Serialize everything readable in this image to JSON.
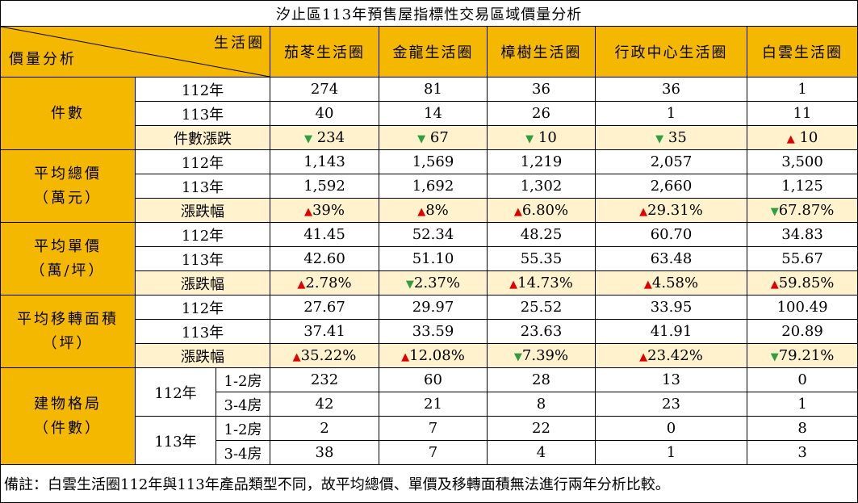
{
  "title": "汐止區113年預售屋指標性交易區域價量分析",
  "header": {
    "corner_top": "生活圈",
    "corner_bottom": "價量分析",
    "areas": [
      "茄苳生活圈",
      "金龍生活圈",
      "樟樹生活圈",
      "行政中心生活圈",
      "白雲生活圈"
    ]
  },
  "sections": {
    "count": {
      "label_lines": [
        "件數"
      ],
      "rows": [
        {
          "label": "112年",
          "values": [
            "274",
            "81",
            "36",
            "36",
            "1"
          ]
        },
        {
          "label": "113年",
          "values": [
            "40",
            "14",
            "26",
            "1",
            "11"
          ]
        },
        {
          "label": "件數漲跌",
          "changes": [
            {
              "dir": "down",
              "value": "234"
            },
            {
              "dir": "down",
              "value": "67"
            },
            {
              "dir": "down",
              "value": "10"
            },
            {
              "dir": "down",
              "value": "35"
            },
            {
              "dir": "up",
              "value": "10"
            }
          ]
        }
      ]
    },
    "avg_total": {
      "label_lines": [
        "平均總價",
        "（萬元）"
      ],
      "rows": [
        {
          "label": "112年",
          "values": [
            "1,143",
            "1,569",
            "1,219",
            "2,057",
            "3,500"
          ]
        },
        {
          "label": "113年",
          "values": [
            "1,592",
            "1,692",
            "1,302",
            "2,660",
            "1,125"
          ]
        },
        {
          "label": "漲跌幅",
          "changes": [
            {
              "dir": "up",
              "value": "39%"
            },
            {
              "dir": "up",
              "value": "8%"
            },
            {
              "dir": "up",
              "value": "6.80%"
            },
            {
              "dir": "up",
              "value": "29.31%"
            },
            {
              "dir": "down",
              "value": "67.87%"
            }
          ]
        }
      ]
    },
    "avg_unit": {
      "label_lines": [
        "平均單價",
        "（萬/坪）"
      ],
      "rows": [
        {
          "label": "112年",
          "values": [
            "41.45",
            "52.34",
            "48.25",
            "60.70",
            "34.83"
          ]
        },
        {
          "label": "113年",
          "values": [
            "42.60",
            "51.10",
            "55.35",
            "63.48",
            "55.67"
          ]
        },
        {
          "label": "漲跌幅",
          "changes": [
            {
              "dir": "up",
              "value": "2.78%"
            },
            {
              "dir": "down",
              "value": "2.37%"
            },
            {
              "dir": "up",
              "value": "14.73%"
            },
            {
              "dir": "up",
              "value": "4.58%"
            },
            {
              "dir": "up",
              "value": "59.85%"
            }
          ]
        }
      ]
    },
    "avg_area": {
      "label_lines": [
        "平均移轉面積",
        "（坪）"
      ],
      "rows": [
        {
          "label": "112年",
          "values": [
            "27.67",
            "29.97",
            "25.52",
            "33.95",
            "100.49"
          ]
        },
        {
          "label": "113年",
          "values": [
            "37.41",
            "33.59",
            "23.63",
            "41.91",
            "20.89"
          ]
        },
        {
          "label": "漲跌幅",
          "changes": [
            {
              "dir": "up",
              "value": "35.22%"
            },
            {
              "dir": "up",
              "value": "12.08%"
            },
            {
              "dir": "down",
              "value": "7.39%"
            },
            {
              "dir": "up",
              "value": "23.42%"
            },
            {
              "dir": "down",
              "value": "79.21%"
            }
          ]
        }
      ]
    },
    "layout": {
      "label_lines": [
        "建物格局",
        "（件數）"
      ],
      "years": [
        {
          "label": "112年",
          "rows": [
            {
              "room": "1-2房",
              "values": [
                "232",
                "60",
                "28",
                "13",
                "0"
              ]
            },
            {
              "room": "3-4房",
              "values": [
                "42",
                "21",
                "8",
                "23",
                "1"
              ]
            }
          ]
        },
        {
          "label": "113年",
          "rows": [
            {
              "room": "1-2房",
              "values": [
                "2",
                "7",
                "22",
                "0",
                "8"
              ]
            },
            {
              "room": "3-4房",
              "values": [
                "38",
                "7",
                "4",
                "1",
                "3"
              ]
            }
          ]
        }
      ]
    }
  },
  "note": "備註：白雲生活圈112年與113年產品類型不同，故平均總價、單價及移轉面積無法進行兩年分析比較。",
  "colors": {
    "header": "#F5B800",
    "change_row": "#FFF2CC",
    "up": "#E00000",
    "down": "#2E9E3E"
  },
  "icons": {
    "up": "triangle-up-icon",
    "down": "triangle-down-icon"
  }
}
